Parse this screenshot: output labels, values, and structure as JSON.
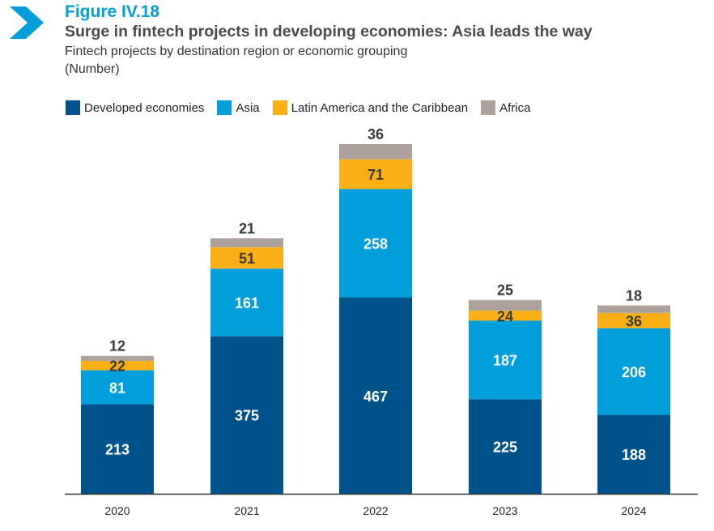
{
  "figure_label": "Figure IV.18",
  "title": "Surge in fintech projects in developing economies: Asia leads the way",
  "subtitle": "Fintech projects by destination region or economic grouping",
  "unit": "(Number)",
  "colors": {
    "developed": "#00538a",
    "asia": "#009edb",
    "latam": "#fbaf17",
    "africa": "#aca19b",
    "accent": "#009edb"
  },
  "chart_data": {
    "type": "bar",
    "stacked": true,
    "categories": [
      "2020",
      "2021",
      "2022",
      "2023",
      "2024"
    ],
    "series": [
      {
        "name": "Developed economies",
        "values": [
          213,
          375,
          467,
          225,
          188
        ]
      },
      {
        "name": "Asia",
        "values": [
          81,
          161,
          258,
          187,
          206
        ]
      },
      {
        "name": "Latin America and the Caribbean",
        "values": [
          22,
          51,
          71,
          24,
          36
        ]
      },
      {
        "name": "Africa",
        "values": [
          12,
          21,
          36,
          25,
          18
        ]
      }
    ],
    "ylim": [
      0,
      832
    ],
    "grid": false,
    "legend": "top-left"
  }
}
